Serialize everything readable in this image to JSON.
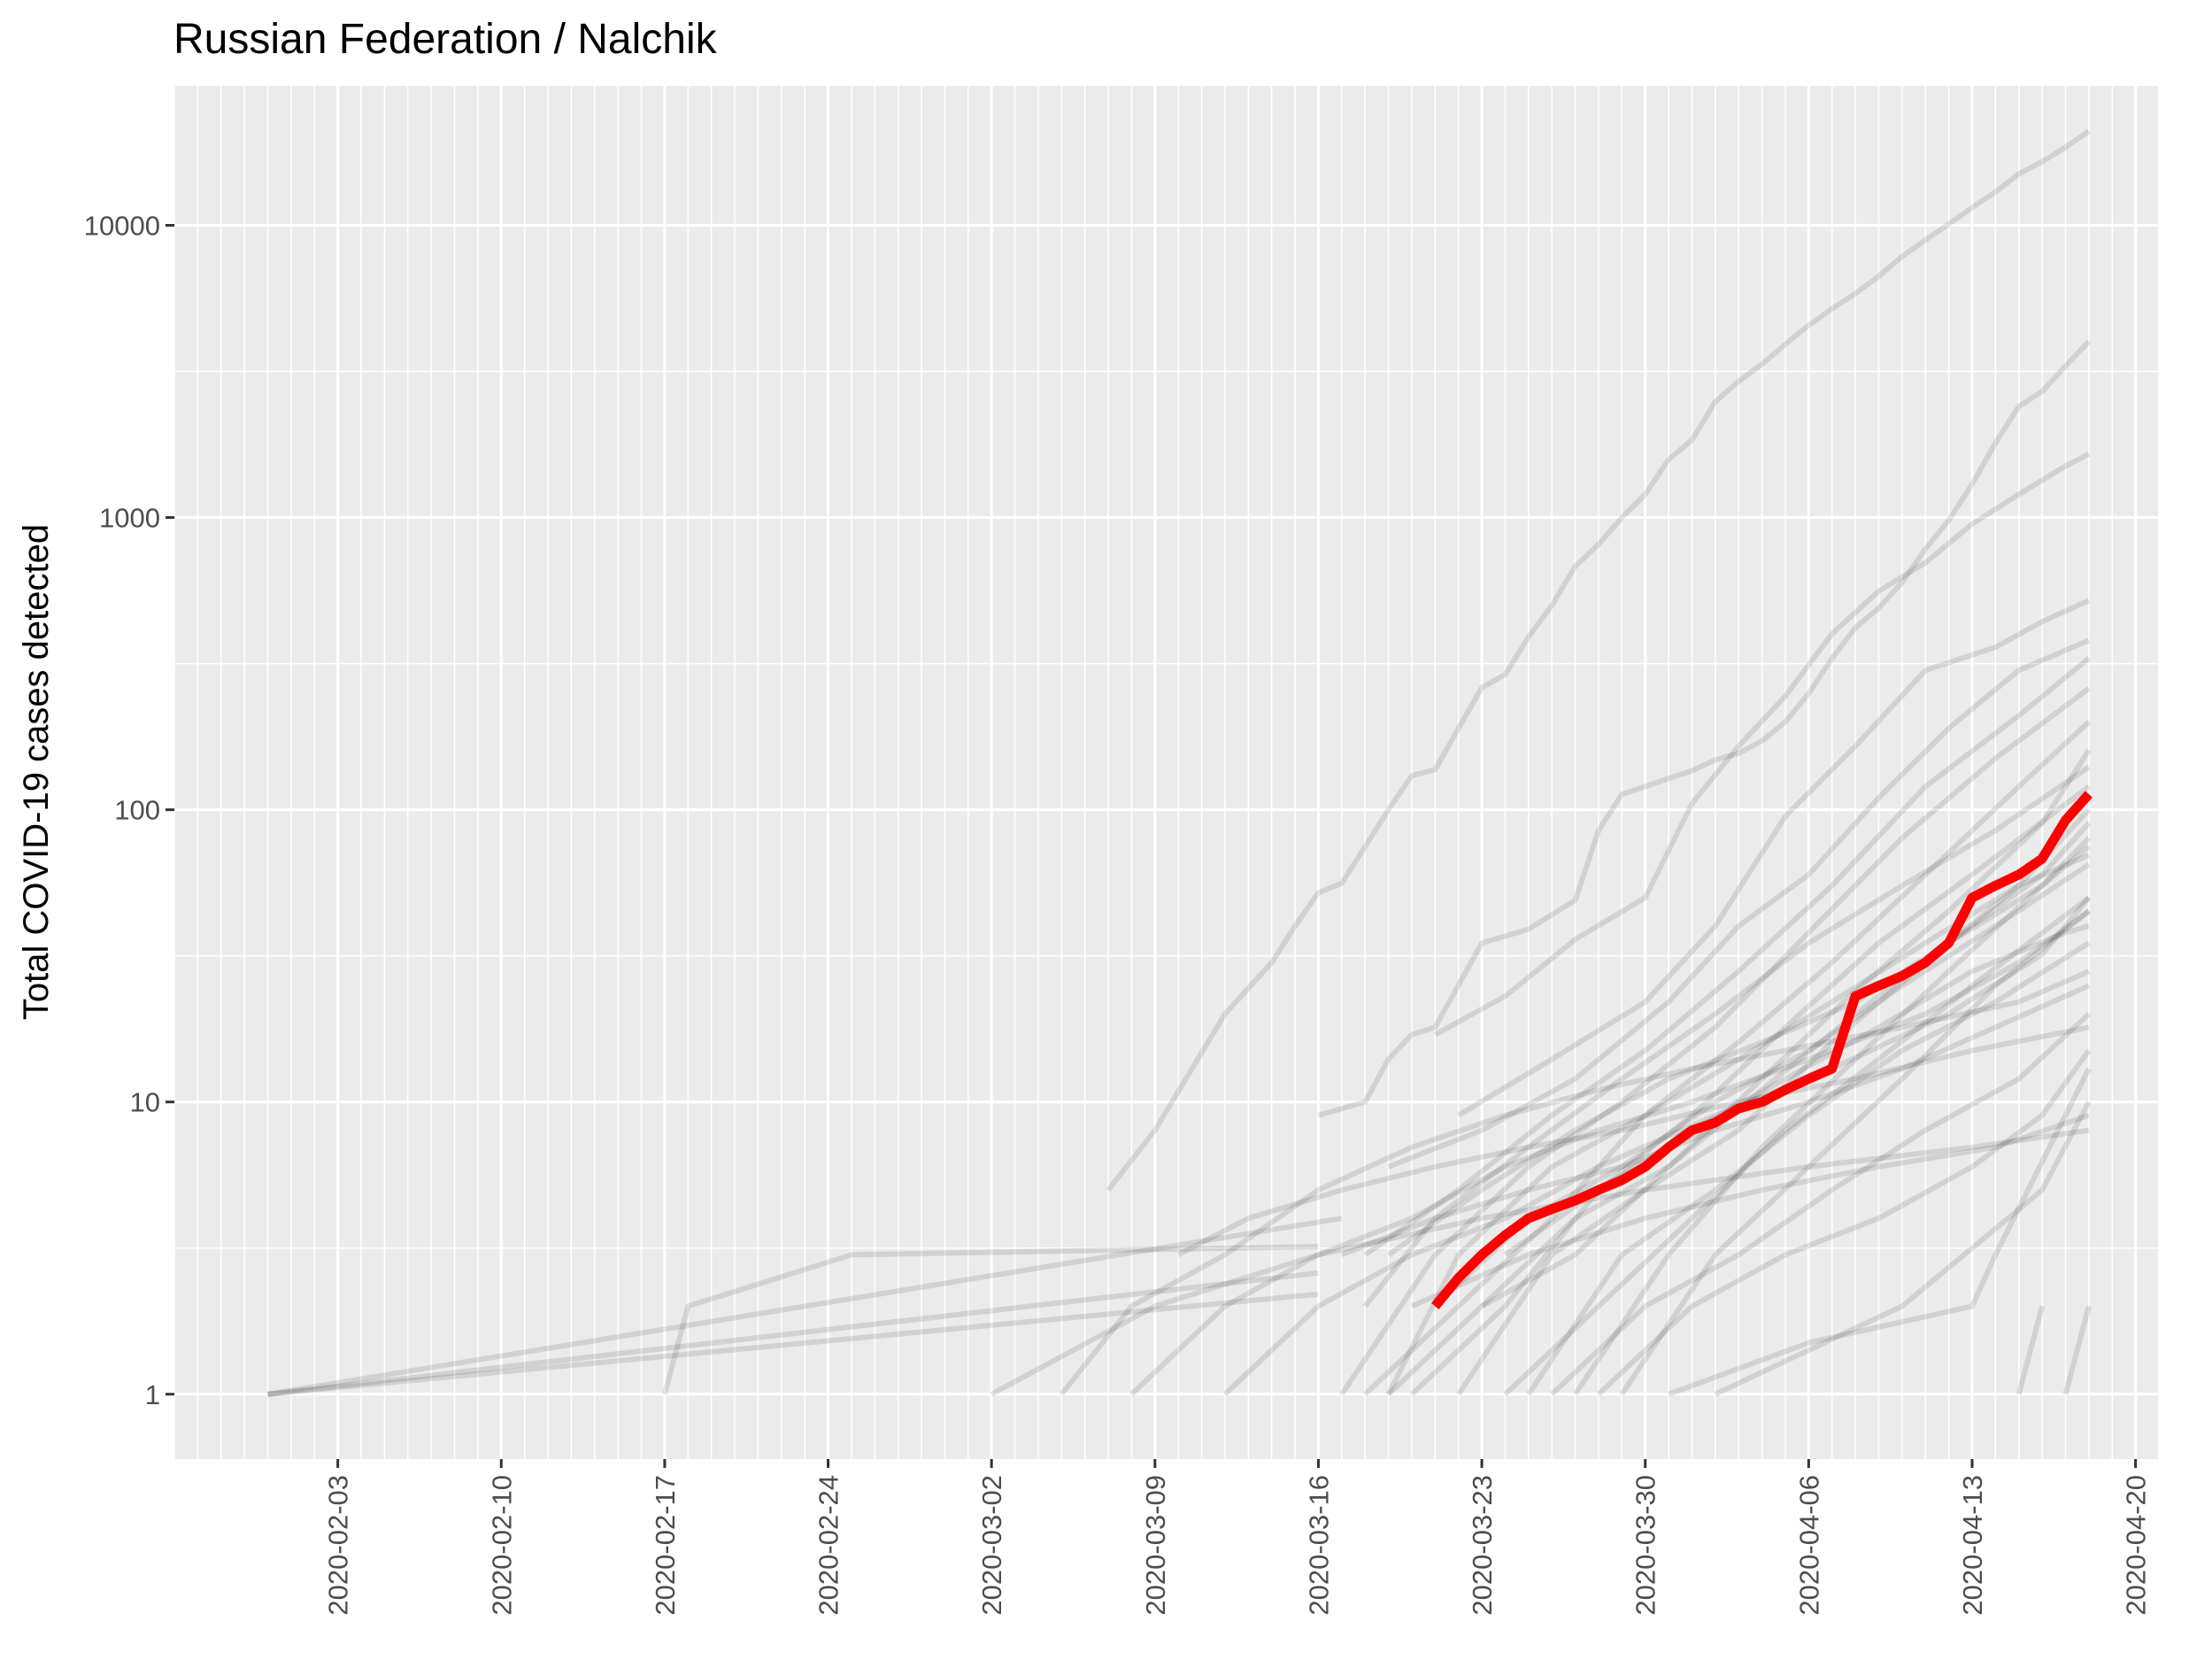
{
  "chart_data": {
    "type": "line",
    "title": "Russian Federation / Nalchik",
    "xlabel": "",
    "ylabel": "Total COVID-19 cases detected",
    "y_scale": "log10",
    "ylim": [
      0.6,
      30000
    ],
    "xlim": [
      "2020-01-27",
      "2020-04-21"
    ],
    "x_ticks": [
      "2020-02-03",
      "2020-02-10",
      "2020-02-17",
      "2020-02-24",
      "2020-03-02",
      "2020-03-09",
      "2020-03-16",
      "2020-03-23",
      "2020-03-30",
      "2020-04-06",
      "2020-04-13",
      "2020-04-20"
    ],
    "y_ticks": [
      1,
      10,
      100,
      1000,
      10000
    ],
    "y_tick_labels": [
      "1",
      "10",
      "100",
      "1000",
      "10000"
    ],
    "grid": true,
    "legend": "none",
    "colors": {
      "panel_background": "#ebebeb",
      "grid": "#ffffff",
      "background_lines": "#000000",
      "highlight": "#ff0000"
    },
    "highlight_series": {
      "name": "Nalchik",
      "x": [
        "2020-03-21",
        "2020-03-22",
        "2020-03-23",
        "2020-03-24",
        "2020-03-25",
        "2020-03-26",
        "2020-03-27",
        "2020-03-28",
        "2020-03-29",
        "2020-03-30",
        "2020-03-31",
        "2020-04-01",
        "2020-04-02",
        "2020-04-03",
        "2020-04-04",
        "2020-04-05",
        "2020-04-06",
        "2020-04-07",
        "2020-04-08",
        "2020-04-09",
        "2020-04-10",
        "2020-04-11",
        "2020-04-12",
        "2020-04-13",
        "2020-04-14",
        "2020-04-15",
        "2020-04-16",
        "2020-04-17",
        "2020-04-18"
      ],
      "y": [
        2,
        2.5,
        3,
        3.5,
        4,
        4.3,
        4.6,
        5,
        5.4,
        6,
        7,
        8,
        8.5,
        9.5,
        10,
        11,
        12,
        13,
        23,
        25,
        27,
        30,
        35,
        50,
        55,
        60,
        68,
        92,
        113
      ]
    },
    "background_series": [
      {
        "x": [
          "2020-01-31",
          "2020-03-17"
        ],
        "y": [
          1,
          4
        ]
      },
      {
        "x": [
          "2020-01-31",
          "2020-03-16"
        ],
        "y": [
          1,
          2.6
        ]
      },
      {
        "x": [
          "2020-01-31",
          "2020-03-16"
        ],
        "y": [
          1,
          2.2
        ]
      },
      {
        "x": [
          "2020-02-17",
          "2020-02-18",
          "2020-02-25",
          "2020-03-16"
        ],
        "y": [
          1,
          2,
          3,
          3.2
        ]
      },
      {
        "x": [
          "2020-03-07",
          "2020-03-09",
          "2020-03-12",
          "2020-03-14",
          "2020-03-15",
          "2020-03-16",
          "2020-03-17",
          "2020-03-19",
          "2020-03-20",
          "2020-03-21",
          "2020-03-22",
          "2020-03-23",
          "2020-03-24",
          "2020-03-25",
          "2020-03-26",
          "2020-03-27",
          "2020-03-28",
          "2020-03-29",
          "2020-03-30",
          "2020-03-31",
          "2020-04-01",
          "2020-04-02",
          "2020-04-03",
          "2020-04-04",
          "2020-04-05",
          "2020-04-06",
          "2020-04-07",
          "2020-04-08",
          "2020-04-09",
          "2020-04-10",
          "2020-04-11",
          "2020-04-12",
          "2020-04-13",
          "2020-04-14",
          "2020-04-15",
          "2020-04-16",
          "2020-04-17",
          "2020-04-18"
        ],
        "y": [
          5,
          8,
          20,
          30,
          40,
          52,
          56,
          100,
          131,
          137,
          190,
          262,
          290,
          390,
          500,
          680,
          810,
          1000,
          1200,
          1580,
          1840,
          2490,
          2920,
          3350,
          3920,
          4550,
          5180,
          5840,
          6690,
          7820,
          8900,
          10100,
          11500,
          13000,
          15000,
          16500,
          18500,
          21000
        ]
      },
      {
        "x": [
          "2020-03-16",
          "2020-03-18",
          "2020-03-19",
          "2020-03-20",
          "2020-03-21",
          "2020-03-23",
          "2020-03-25",
          "2020-03-27",
          "2020-03-28",
          "2020-03-29",
          "2020-03-30",
          "2020-03-31",
          "2020-04-01",
          "2020-04-02",
          "2020-04-03",
          "2020-04-04",
          "2020-04-05",
          "2020-04-06",
          "2020-04-07",
          "2020-04-08",
          "2020-04-09",
          "2020-04-10",
          "2020-04-11",
          "2020-04-12",
          "2020-04-13",
          "2020-04-14",
          "2020-04-15",
          "2020-04-16",
          "2020-04-17",
          "2020-04-18"
        ],
        "y": [
          9,
          10,
          14,
          17,
          18,
          35,
          39,
          49,
          85,
          113,
          120,
          128,
          136,
          148,
          156,
          172,
          200,
          250,
          330,
          420,
          490,
          600,
          780,
          980,
          1300,
          1800,
          2400,
          2700,
          3300,
          4000
        ]
      },
      {
        "x": [
          "2020-03-21",
          "2020-03-24",
          "2020-03-27",
          "2020-03-30",
          "2020-04-01",
          "2020-04-03",
          "2020-04-05",
          "2020-04-07",
          "2020-04-09",
          "2020-04-11",
          "2020-04-13",
          "2020-04-15",
          "2020-04-17",
          "2020-04-18"
        ],
        "y": [
          17,
          23,
          36,
          50,
          105,
          165,
          245,
          400,
          560,
          700,
          950,
          1200,
          1500,
          1650
        ]
      },
      {
        "x": [
          "2020-03-22",
          "2020-03-26",
          "2020-03-30",
          "2020-04-02",
          "2020-04-05",
          "2020-04-08",
          "2020-04-11",
          "2020-04-14",
          "2020-04-16",
          "2020-04-18"
        ],
        "y": [
          9,
          14,
          22,
          40,
          95,
          165,
          300,
          360,
          440,
          520
        ]
      },
      {
        "x": [
          "2020-03-19",
          "2020-03-23",
          "2020-03-27",
          "2020-03-31",
          "2020-04-03",
          "2020-04-06",
          "2020-04-09",
          "2020-04-12",
          "2020-04-15",
          "2020-04-18"
        ],
        "y": [
          6,
          8,
          12,
          22,
          40,
          60,
          110,
          190,
          300,
          380
        ]
      },
      {
        "x": [
          "2020-03-18",
          "2020-03-22",
          "2020-03-26",
          "2020-03-30",
          "2020-04-03",
          "2020-04-07",
          "2020-04-11",
          "2020-04-15",
          "2020-04-18"
        ],
        "y": [
          3,
          5,
          9,
          15,
          28,
          55,
          120,
          210,
          330
        ]
      },
      {
        "x": [
          "2020-03-17",
          "2020-03-21",
          "2020-03-25",
          "2020-03-29",
          "2020-04-02",
          "2020-04-06",
          "2020-04-10",
          "2020-04-14",
          "2020-04-18"
        ],
        "y": [
          1,
          3,
          6,
          10,
          18,
          38,
          80,
          150,
          260
        ]
      },
      {
        "x": [
          "2020-03-18",
          "2020-03-22",
          "2020-03-26",
          "2020-03-30",
          "2020-04-03",
          "2020-04-07",
          "2020-04-11",
          "2020-04-15",
          "2020-04-18"
        ],
        "y": [
          1,
          2,
          4,
          9,
          16,
          30,
          60,
          120,
          200
        ]
      },
      {
        "x": [
          "2020-03-19",
          "2020-03-23",
          "2020-03-27",
          "2020-03-31",
          "2020-04-04",
          "2020-04-08",
          "2020-04-12",
          "2020-04-16",
          "2020-04-18"
        ],
        "y": [
          1,
          2,
          3,
          6,
          12,
          24,
          45,
          90,
          160
        ]
      },
      {
        "x": [
          "2020-03-18",
          "2020-03-21",
          "2020-03-25",
          "2020-03-29",
          "2020-04-02",
          "2020-04-06",
          "2020-04-10",
          "2020-04-14",
          "2020-04-18"
        ],
        "y": [
          2,
          4,
          7,
          12,
          20,
          35,
          55,
          85,
          140
        ]
      },
      {
        "x": [
          "2020-03-20",
          "2020-03-24",
          "2020-03-28",
          "2020-04-01",
          "2020-04-05",
          "2020-04-09",
          "2020-04-13",
          "2020-04-18"
        ],
        "y": [
          1,
          2,
          5,
          9,
          18,
          35,
          60,
          120
        ]
      },
      {
        "x": [
          "2020-03-22",
          "2020-03-26",
          "2020-03-30",
          "2020-04-03",
          "2020-04-07",
          "2020-04-11",
          "2020-04-15",
          "2020-04-18"
        ],
        "y": [
          1,
          3,
          5,
          8,
          16,
          30,
          55,
          100
        ]
      },
      {
        "x": [
          "2020-03-19",
          "2020-03-23",
          "2020-03-27",
          "2020-03-31",
          "2020-04-04",
          "2020-04-08",
          "2020-04-12",
          "2020-04-16",
          "2020-04-18"
        ],
        "y": [
          3,
          5,
          8,
          12,
          16,
          22,
          35,
          55,
          80
        ]
      },
      {
        "x": [
          "2020-03-21",
          "2020-03-25",
          "2020-03-29",
          "2020-04-02",
          "2020-04-06",
          "2020-04-10",
          "2020-04-14",
          "2020-04-18"
        ],
        "y": [
          2,
          4,
          6,
          10,
          15,
          25,
          40,
          65
        ]
      },
      {
        "x": [
          "2020-03-24",
          "2020-03-28",
          "2020-04-01",
          "2020-04-05",
          "2020-04-09",
          "2020-04-13",
          "2020-04-18"
        ],
        "y": [
          1,
          2,
          4,
          8,
          14,
          25,
          50
        ]
      },
      {
        "x": [
          "2020-03-25",
          "2020-03-29",
          "2020-04-02",
          "2020-04-06",
          "2020-04-10",
          "2020-04-14",
          "2020-04-18"
        ],
        "y": [
          1,
          3,
          5,
          9,
          15,
          22,
          35
        ]
      },
      {
        "x": [
          "2020-03-17",
          "2020-03-21",
          "2020-03-25",
          "2020-03-29",
          "2020-04-02",
          "2020-04-06",
          "2020-04-10",
          "2020-04-14",
          "2020-04-18"
        ],
        "y": [
          3,
          4,
          5,
          6,
          8,
          10,
          13,
          18,
          25
        ]
      },
      {
        "x": [
          "2020-03-26",
          "2020-03-30",
          "2020-04-03",
          "2020-04-07",
          "2020-04-11",
          "2020-04-15",
          "2020-04-18"
        ],
        "y": [
          1,
          2,
          3,
          5,
          8,
          12,
          20
        ]
      },
      {
        "x": [
          "2020-03-28",
          "2020-04-01",
          "2020-04-05",
          "2020-04-09",
          "2020-04-13",
          "2020-04-16",
          "2020-04-18"
        ],
        "y": [
          1,
          2,
          3,
          4,
          6,
          9,
          15
        ]
      },
      {
        "x": [
          "2020-03-20",
          "2020-03-25",
          "2020-03-30",
          "2020-04-04",
          "2020-04-09",
          "2020-04-14",
          "2020-04-18"
        ],
        "y": [
          2,
          3,
          4,
          5,
          6,
          7,
          9
        ]
      },
      {
        "x": [
          "2020-03-31",
          "2020-04-06",
          "2020-04-13",
          "2020-04-14",
          "2020-04-18"
        ],
        "y": [
          1,
          1.5,
          2,
          3,
          13
        ]
      },
      {
        "x": [
          "2020-04-02",
          "2020-04-10",
          "2020-04-16",
          "2020-04-18"
        ],
        "y": [
          1,
          2,
          5,
          10
        ]
      },
      {
        "x": [
          "2020-03-05",
          "2020-03-08",
          "2020-03-12",
          "2020-03-16",
          "2020-03-20",
          "2020-03-24",
          "2020-03-28",
          "2020-04-01",
          "2020-04-05",
          "2020-04-10",
          "2020-04-15",
          "2020-04-18"
        ],
        "y": [
          1,
          2,
          3,
          5,
          7,
          9,
          11,
          13,
          15,
          18,
          22,
          28
        ]
      },
      {
        "x": [
          "2020-03-08",
          "2020-03-12",
          "2020-03-16",
          "2020-03-20",
          "2020-03-24",
          "2020-03-28",
          "2020-04-01",
          "2020-04-06",
          "2020-04-11",
          "2020-04-15",
          "2020-04-18"
        ],
        "y": [
          1,
          2,
          3,
          4,
          6,
          8,
          10,
          14,
          20,
          30,
          45
        ]
      },
      {
        "x": [
          "2020-03-12",
          "2020-03-16",
          "2020-03-20",
          "2020-03-24",
          "2020-03-28",
          "2020-04-02",
          "2020-04-07",
          "2020-04-12",
          "2020-04-16",
          "2020-04-18"
        ],
        "y": [
          1,
          2,
          3,
          4,
          6,
          9,
          13,
          20,
          32,
          50
        ]
      },
      {
        "x": [
          "2020-03-10",
          "2020-03-13",
          "2020-03-17",
          "2020-03-21",
          "2020-03-25",
          "2020-03-29",
          "2020-04-03",
          "2020-04-08",
          "2020-04-13",
          "2020-04-18"
        ],
        "y": [
          3,
          4,
          5,
          6,
          7,
          8,
          10,
          12,
          15,
          18
        ]
      },
      {
        "x": [
          "2020-03-02",
          "2020-03-09",
          "2020-03-16",
          "2020-03-23",
          "2020-03-30",
          "2020-04-06",
          "2020-04-13",
          "2020-04-18"
        ],
        "y": [
          1,
          2,
          3,
          4,
          5,
          6,
          7,
          8
        ]
      },
      {
        "x": [
          "2020-03-23",
          "2020-03-27",
          "2020-03-31",
          "2020-04-04",
          "2020-04-08",
          "2020-04-12",
          "2020-04-16",
          "2020-04-18"
        ],
        "y": [
          2,
          4,
          6,
          11,
          20,
          35,
          60,
          90
        ]
      },
      {
        "x": [
          "2020-03-27",
          "2020-03-31",
          "2020-04-04",
          "2020-04-08",
          "2020-04-12",
          "2020-04-16",
          "2020-04-18"
        ],
        "y": [
          1,
          3,
          7,
          14,
          28,
          55,
          75
        ]
      },
      {
        "x": [
          "2020-03-29",
          "2020-04-02",
          "2020-04-06",
          "2020-04-10",
          "2020-04-14",
          "2020-04-18"
        ],
        "y": [
          1,
          3,
          6,
          12,
          25,
          45
        ]
      },
      {
        "x": [
          "2020-03-19",
          "2020-03-22",
          "2020-03-26",
          "2020-03-30",
          "2020-04-03",
          "2020-04-07",
          "2020-04-11",
          "2020-04-15",
          "2020-04-18"
        ],
        "y": [
          1,
          3,
          6,
          9,
          14,
          22,
          35,
          55,
          70
        ]
      },
      {
        "x": [
          "2020-03-24",
          "2020-03-28",
          "2020-04-01",
          "2020-04-05",
          "2020-04-09",
          "2020-04-13",
          "2020-04-17",
          "2020-04-18"
        ],
        "y": [
          3,
          5,
          8,
          12,
          18,
          28,
          38,
          40
        ]
      },
      {
        "x": [
          "2020-04-15",
          "2020-04-16"
        ],
        "y": [
          1,
          2
        ]
      },
      {
        "x": [
          "2020-04-17",
          "2020-04-18"
        ],
        "y": [
          1,
          2
        ]
      }
    ]
  }
}
